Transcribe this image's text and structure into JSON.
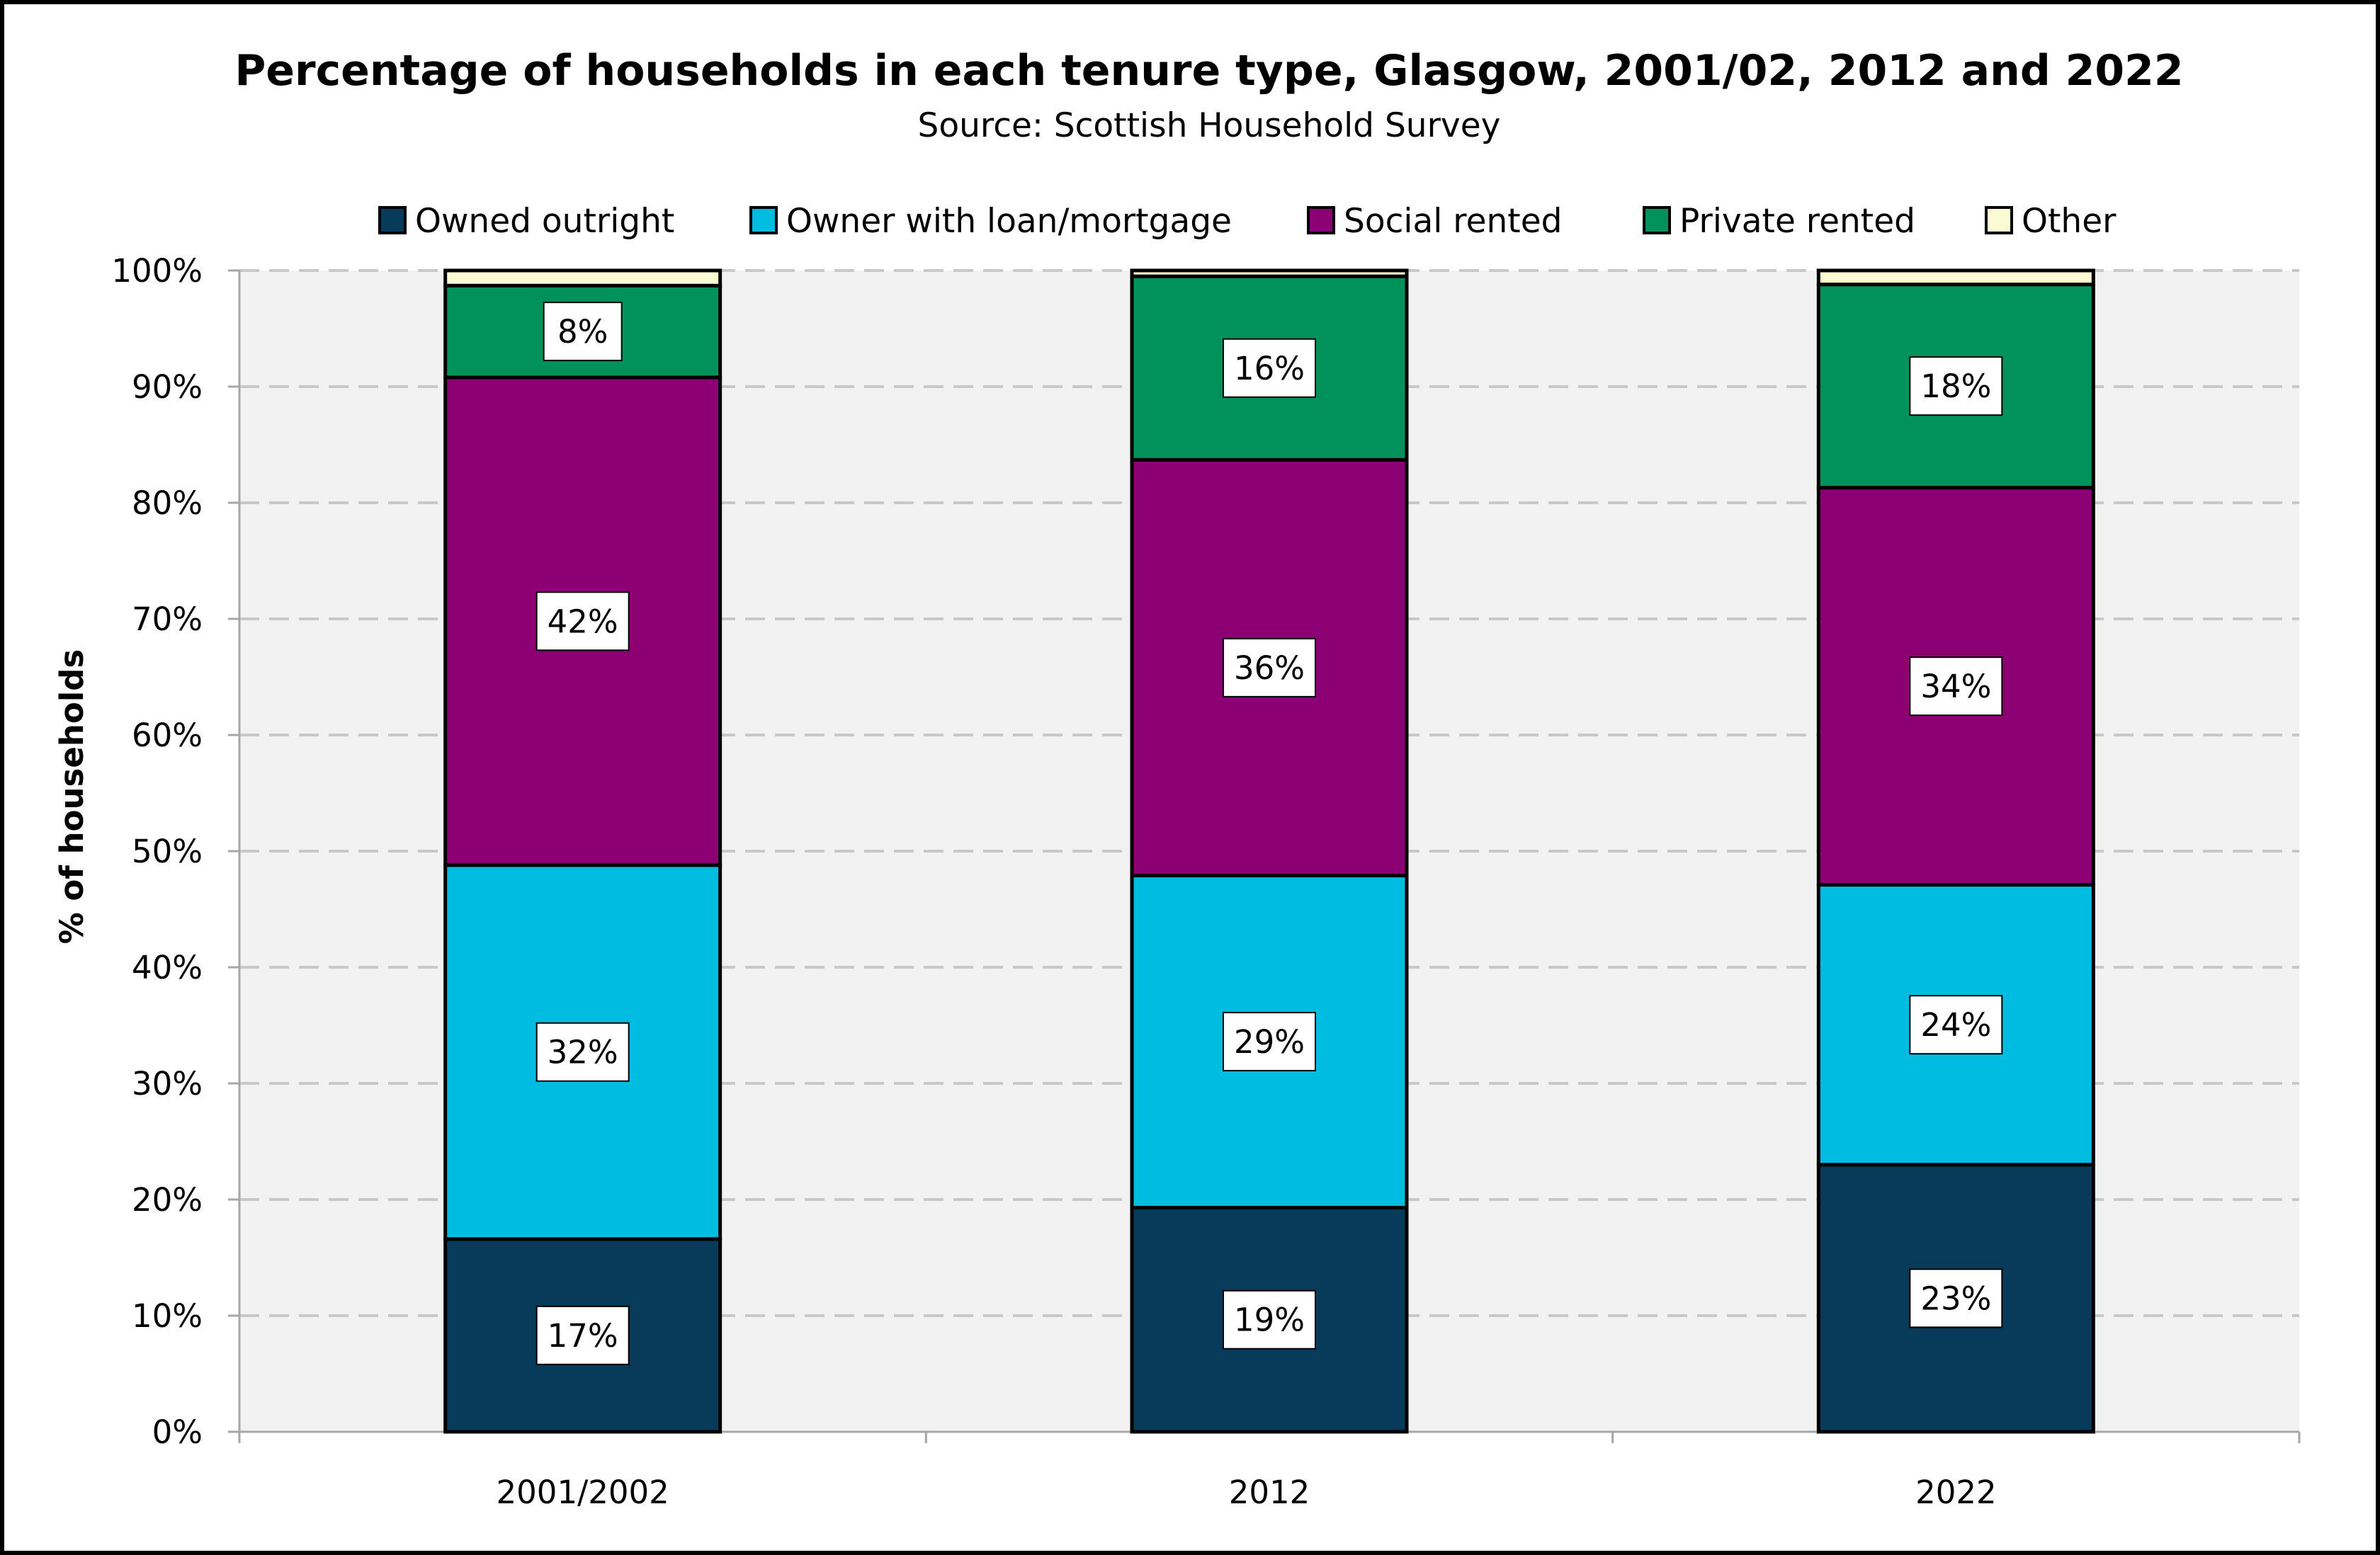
{
  "chart_data": {
    "type": "bar",
    "stacked": true,
    "title": "Percentage of households in each tenure type, Glasgow, 2001/02, 2012 and 2022",
    "subtitle": "Source: Scottish Household Survey",
    "xlabel": "",
    "ylabel": "% of households",
    "ylim": [
      0,
      100
    ],
    "y_ticks": [
      "0%",
      "10%",
      "20%",
      "30%",
      "40%",
      "50%",
      "60%",
      "70%",
      "80%",
      "90%",
      "100%"
    ],
    "grid": true,
    "legend_position": "top",
    "categories": [
      "2001/2002",
      "2012",
      "2022"
    ],
    "series": [
      {
        "name": "Owned outright",
        "color": "#083a5a",
        "values": [
          16.6,
          19.3,
          23.0
        ],
        "labels": [
          "17%",
          "19%",
          "23%"
        ]
      },
      {
        "name": "Owner with loan/mortgage",
        "color": "#00bce0",
        "values": [
          32.2,
          28.6,
          24.1
        ],
        "labels": [
          "32%",
          "29%",
          "24%"
        ]
      },
      {
        "name": "Social rented",
        "color": "#8c0073",
        "values": [
          42.0,
          35.8,
          34.2
        ],
        "labels": [
          "42%",
          "36%",
          "34%"
        ]
      },
      {
        "name": "Private rented",
        "color": "#00925a",
        "values": [
          7.9,
          15.8,
          17.5
        ],
        "labels": [
          "8%",
          "16%",
          "18%"
        ]
      },
      {
        "name": "Other",
        "color": "#fcfad2",
        "values": [
          1.3,
          0.5,
          1.2
        ],
        "labels": [
          "",
          "",
          ""
        ]
      }
    ]
  }
}
